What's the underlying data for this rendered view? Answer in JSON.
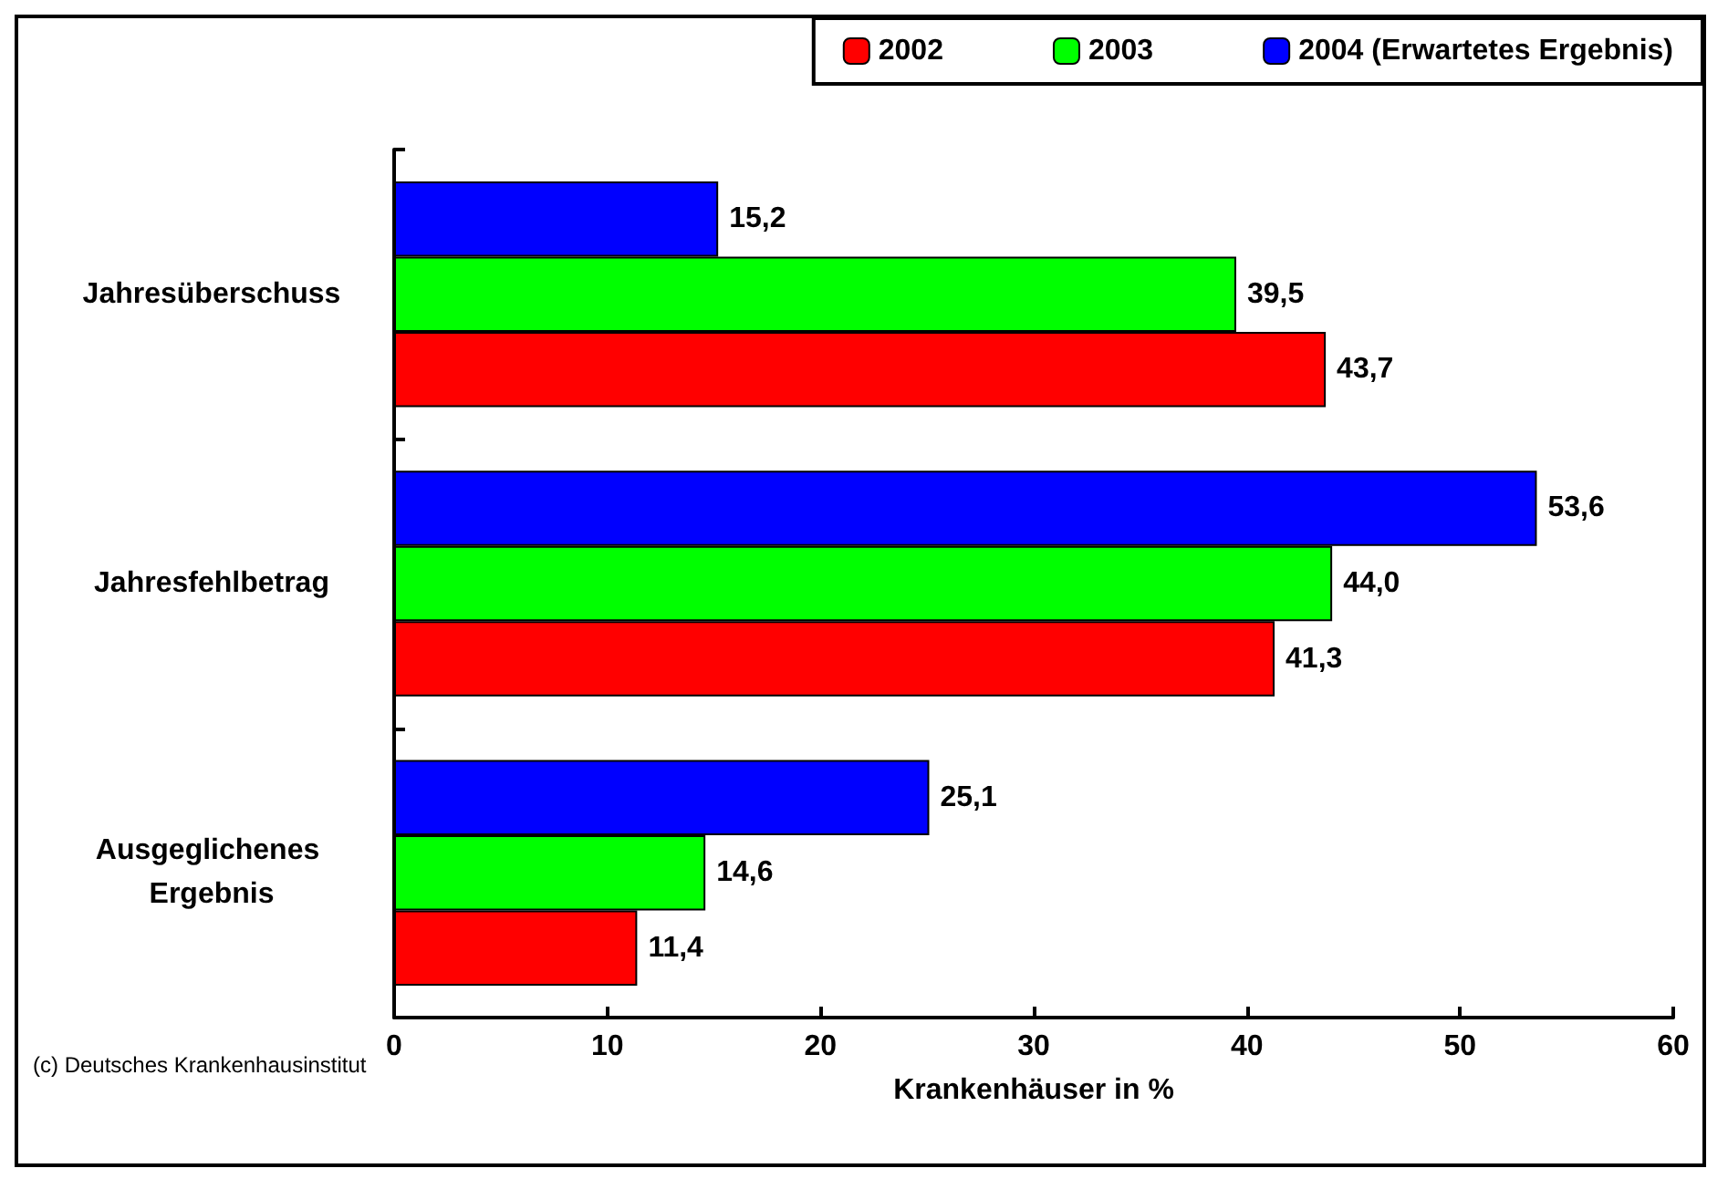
{
  "chart_data": {
    "type": "bar",
    "orientation": "horizontal",
    "xlabel": "Krankenhäuser in %",
    "categories": [
      "Jahresüberschuss",
      "Jahresfehlbetrag",
      "Ausgeglichenes Ergebnis"
    ],
    "series": [
      {
        "name": "2002",
        "color": "#ff0000",
        "values": [
          43.7,
          41.3,
          11.4
        ],
        "value_labels": [
          "43,7",
          "41,3",
          "11,4"
        ]
      },
      {
        "name": "2003",
        "color": "#00ff00",
        "values": [
          39.5,
          44.0,
          14.6
        ],
        "value_labels": [
          "39,5",
          "44,0",
          "14,6"
        ]
      },
      {
        "name": "2004 (Erwartetes Ergebnis)",
        "color": "#0000ff",
        "values": [
          15.2,
          53.6,
          25.1
        ],
        "value_labels": [
          "15,2",
          "53,6",
          "25,1"
        ]
      }
    ],
    "xlim": [
      0,
      60
    ],
    "xticks": [
      0,
      10,
      20,
      30,
      40,
      50,
      60
    ],
    "grid": false,
    "legend": "top right",
    "annotations": [
      "(c) Deutsches Krankenhausinstitut"
    ]
  }
}
